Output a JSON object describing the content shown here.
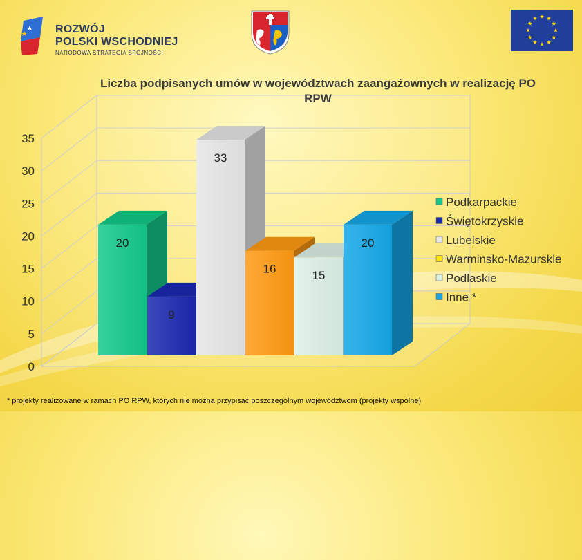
{
  "logos": {
    "rpw_line1": "ROZWÓJ",
    "rpw_line2": "POLSKI WSCHODNIEJ",
    "rpw_subtitle": "NARODOWA STRATEGIA SPÓJNOŚCI",
    "coat_icon": "coat-of-arms-icon",
    "eu_icon": "eu-flag-icon"
  },
  "colors": {
    "Podkarpackie": "#12c98a",
    "Świętokrzyskie": "#1a28b0",
    "Lubelskie": "#e6e6e6",
    "Warminsko-Mazurskie": "#ffe800",
    "Podlaskie": "#dcf0e6",
    "Inne *": "#14a7e8",
    "Warminsko-Mazurskie-bar": "#ff9a12"
  },
  "chart_data": {
    "type": "bar",
    "title": "Liczba podpisanych umów w województwach zaangażownych w realizację PO RPW",
    "categories": [
      "Podkarpackie",
      "Świętokrzyskie",
      "Lubelskie",
      "Warminsko-Mazurskie",
      "Podlaskie",
      "Inne *"
    ],
    "values": [
      20,
      9,
      33,
      16,
      15,
      20
    ],
    "value_labels": [
      "20",
      "9",
      "33",
      "16",
      "15",
      "20"
    ],
    "ylim": [
      0,
      35
    ],
    "yticks": [
      "0",
      "5",
      "10",
      "15",
      "20",
      "25",
      "30",
      "35"
    ],
    "legend_entries": [
      "Podkarpackie",
      "Świętokrzyskie",
      "Lubelskie",
      "Warminsko-Mazurskie",
      "Podlaskie",
      "Inne *"
    ],
    "legend_position": "right",
    "grid": true,
    "style": "3d"
  },
  "footnote": "* projekty realizowane w ramach PO RPW, których nie można przypisać poszczególnym województwom (projekty wspólne)"
}
